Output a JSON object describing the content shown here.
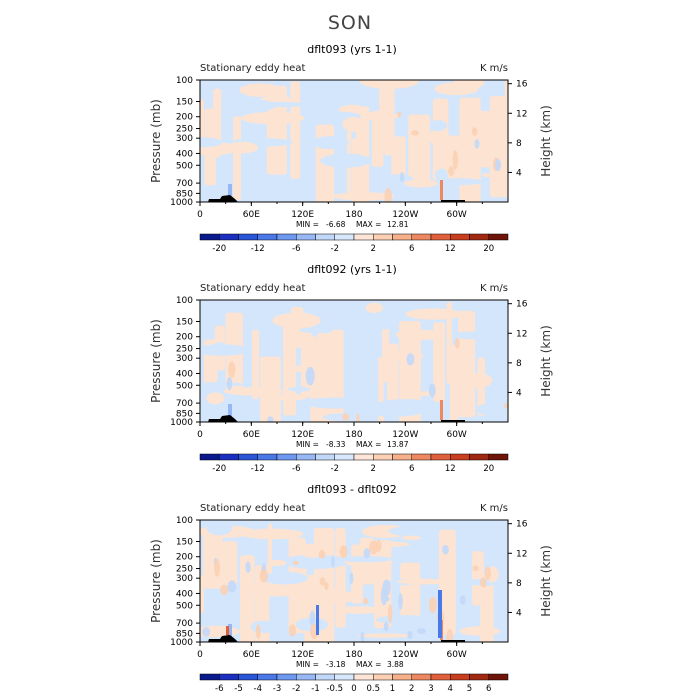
{
  "page": {
    "title": "SON"
  },
  "chart_data": [
    {
      "type": "heatmap",
      "title": "dflt093 (yrs 1-1)",
      "left_label": "Stationary eddy heat",
      "units": "K m/s",
      "ylabel": "Pressure (mb)",
      "ylabel_right": "Height (km)",
      "x_ticks": [
        "0",
        "60E",
        "120E",
        "180",
        "120W",
        "60W"
      ],
      "y_ticks": [
        "100",
        "150",
        "200",
        "250",
        "300",
        "400",
        "500",
        "700",
        "850",
        "1000"
      ],
      "y_right_ticks": [
        "4",
        "8",
        "12",
        "16"
      ],
      "min_label": "MIN =",
      "min": "-6.68",
      "max_label": "MAX =",
      "max": "12.81",
      "colorbar_labels": [
        "-20",
        "-12",
        "-6",
        "-2",
        "2",
        "6",
        "12",
        "20"
      ]
    },
    {
      "type": "heatmap",
      "title": "dflt092 (yrs 1-1)",
      "left_label": "Stationary eddy heat",
      "units": "K m/s",
      "ylabel": "Pressure (mb)",
      "ylabel_right": "Height (km)",
      "x_ticks": [
        "0",
        "60E",
        "120E",
        "180",
        "120W",
        "60W"
      ],
      "y_ticks": [
        "100",
        "150",
        "200",
        "250",
        "300",
        "400",
        "500",
        "700",
        "850",
        "1000"
      ],
      "y_right_ticks": [
        "4",
        "8",
        "12",
        "16"
      ],
      "min_label": "MIN =",
      "min": "-8.33",
      "max_label": "MAX =",
      "max": "13.87",
      "colorbar_labels": [
        "-20",
        "-12",
        "-6",
        "-2",
        "2",
        "6",
        "12",
        "20"
      ]
    },
    {
      "type": "heatmap",
      "title": "dflt093 - dflt092",
      "left_label": "Stationary eddy heat",
      "units": "K m/s",
      "ylabel": "Pressure (mb)",
      "ylabel_right": "Height (km)",
      "x_ticks": [
        "0",
        "60E",
        "120E",
        "180",
        "120W",
        "60W"
      ],
      "y_ticks": [
        "100",
        "150",
        "200",
        "250",
        "300",
        "400",
        "500",
        "700",
        "850",
        "1000"
      ],
      "y_right_ticks": [
        "4",
        "8",
        "12",
        "16"
      ],
      "min_label": "MIN =",
      "min": "-3.18",
      "max_label": "MAX =",
      "max": "3.88",
      "colorbar_labels": [
        "-6",
        "-5",
        "-4",
        "-3",
        "-2",
        "-1",
        "-0.5",
        "0",
        "0.5",
        "1",
        "2",
        "3",
        "4",
        "5",
        "6"
      ]
    }
  ],
  "palette": [
    "#0a1a8c",
    "#1a2fc0",
    "#2a55d6",
    "#4a78e6",
    "#6f98f0",
    "#98b8f5",
    "#c2d8f8",
    "#d8e8fc",
    "#fde6d8",
    "#fbd0b4",
    "#f6b08a",
    "#ee8860",
    "#e0603c",
    "#c83e1e",
    "#a02810",
    "#6e1408"
  ],
  "colors": {
    "background_neg": "#d4e6fb",
    "background_pos": "#fde3d2",
    "topography": "#000000"
  }
}
